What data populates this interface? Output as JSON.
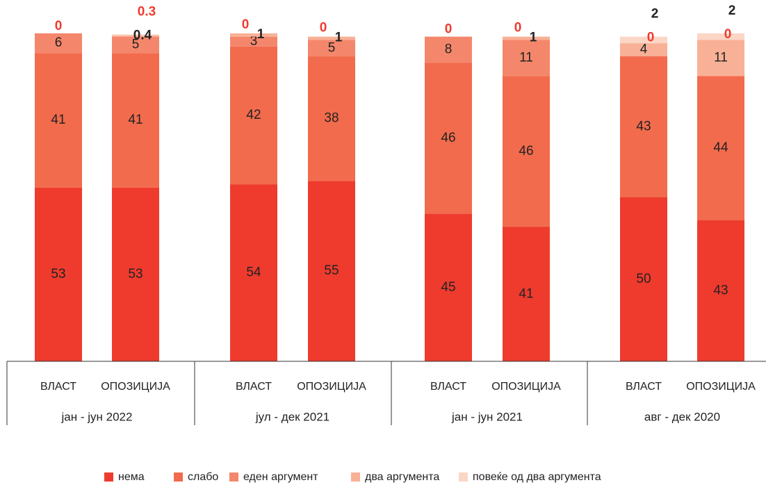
{
  "chart_data": {
    "type": "stacked_bar",
    "categories": [
      "ВЛАСТ",
      "ОПОЗИЦИЈА",
      "ВЛАСТ",
      "ОПОЗИЦИЈА",
      "ВЛАСТ",
      "ОПОЗИЦИЈА",
      "ВЛАСТ",
      "ОПОЗИЦИЈА"
    ],
    "periods": [
      "јан - јун 2022",
      "јул - дек 2021",
      "јан - јун 2021",
      "авг - дек 2020"
    ],
    "ylim": [
      0,
      100
    ],
    "series": [
      {
        "name": "нема",
        "color": "#ee3b2e",
        "values": [
          53,
          53,
          54,
          55,
          45,
          41,
          50,
          43
        ]
      },
      {
        "name": "слабо",
        "color": "#f26b4d",
        "values": [
          41,
          41,
          42,
          38,
          46,
          46,
          43,
          44
        ]
      },
      {
        "name": "еден аргумент",
        "color": "#f4876b",
        "values": [
          6,
          5,
          3,
          5,
          8,
          11,
          0,
          0
        ]
      },
      {
        "name": "два аргумента",
        "color": "#f8b196",
        "values": [
          null,
          0.4,
          1,
          1,
          null,
          1,
          4,
          11
        ]
      },
      {
        "name": "повеќе од два аргумента",
        "color": "#fbd6c6",
        "values": [
          0,
          0.3,
          0,
          0,
          0,
          0,
          2,
          2
        ]
      }
    ],
    "legend": "bottom"
  }
}
